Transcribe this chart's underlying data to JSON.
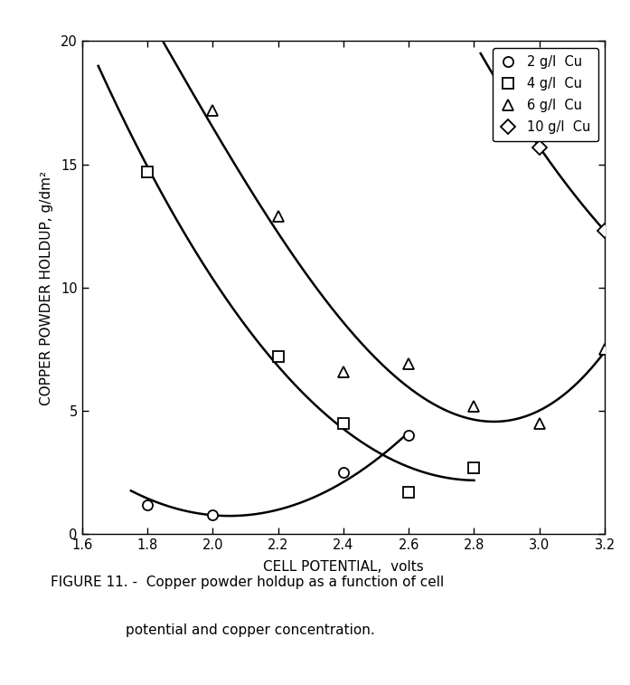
{
  "series": [
    {
      "label": "2 g/l  Cu",
      "marker": "o",
      "x": [
        1.8,
        2.0,
        2.4,
        2.6
      ],
      "y": [
        1.2,
        0.8,
        2.5,
        4.0
      ],
      "fit_x": [
        1.75,
        2.0,
        2.2,
        2.4,
        2.6
      ],
      "fit_y": [
        1.8,
        0.8,
        0.7,
        2.5,
        4.0
      ],
      "fit_degree": 2
    },
    {
      "label": "4 g/l  Cu",
      "marker": "s",
      "x": [
        1.8,
        2.2,
        2.4,
        2.6,
        2.8
      ],
      "y": [
        14.7,
        7.2,
        4.5,
        1.7,
        2.7
      ],
      "fit_x": [
        1.65,
        1.8,
        2.0,
        2.2,
        2.4,
        2.6,
        2.8
      ],
      "fit_y": [
        19.0,
        14.7,
        10.5,
        7.2,
        4.5,
        1.7,
        2.7
      ],
      "fit_degree": 2
    },
    {
      "label": "6 g/l  Cu",
      "marker": "^",
      "x": [
        2.0,
        2.2,
        2.4,
        2.6,
        2.8,
        3.0,
        3.2
      ],
      "y": [
        17.2,
        12.9,
        6.6,
        6.9,
        5.2,
        4.5,
        7.5
      ],
      "fit_x": [
        1.85,
        2.0,
        2.2,
        2.4,
        2.6,
        2.8,
        3.0,
        3.2
      ],
      "fit_y": [
        19.5,
        17.2,
        12.9,
        6.6,
        6.9,
        5.2,
        4.5,
        7.5
      ],
      "fit_degree": 3
    },
    {
      "label": "10 g/l  Cu",
      "marker": "D",
      "x": [
        3.0,
        3.2
      ],
      "y": [
        15.7,
        12.3
      ],
      "fit_x": [
        2.82,
        3.0,
        3.2
      ],
      "fit_y": [
        19.5,
        15.7,
        12.3
      ],
      "fit_degree": 2
    }
  ],
  "xlim": [
    1.6,
    3.2
  ],
  "ylim": [
    0,
    20
  ],
  "xticks": [
    1.6,
    1.8,
    2.0,
    2.2,
    2.4,
    2.6,
    2.8,
    3.0,
    3.2
  ],
  "yticks": [
    0,
    5,
    10,
    15,
    20
  ],
  "xlabel": "CELL POTENTIAL,  volts",
  "ylabel": "COPPER POWDER HOLDUP, g/dm²",
  "figure_title_line1": "FIGURE 11. -  Copper powder holdup as a function of cell",
  "figure_title_line2": "potential and copper concentration.",
  "marker_size": 8,
  "line_color": "#000000",
  "line_width": 1.8,
  "background_color": "#ffffff",
  "legend_labels": [
    "2 g/l  Cu",
    "4 g/l  Cu",
    "6 g/l  Cu",
    "10 g/l  Cu"
  ],
  "legend_markers": [
    "o",
    "s",
    "^",
    "D"
  ],
  "fig_width": 6.97,
  "fig_height": 7.57
}
